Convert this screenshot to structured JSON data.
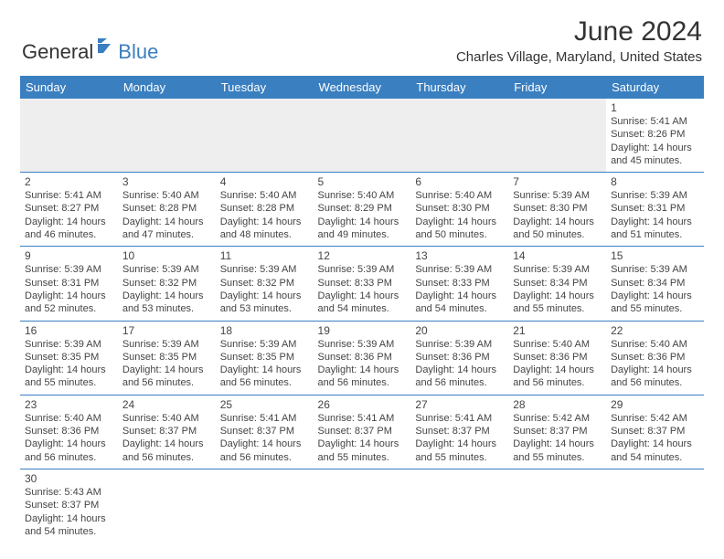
{
  "brand": {
    "part1": "General",
    "part2": "Blue"
  },
  "title": "June 2024",
  "location": "Charles Village, Maryland, United States",
  "colors": {
    "accent": "#3a7fc0",
    "blank_bg": "#eeeeee",
    "text": "#444444",
    "title_text": "#333333"
  },
  "day_headers": [
    "Sunday",
    "Monday",
    "Tuesday",
    "Wednesday",
    "Thursday",
    "Friday",
    "Saturday"
  ],
  "weeks": [
    [
      {
        "blank": true
      },
      {
        "blank": true
      },
      {
        "blank": true
      },
      {
        "blank": true
      },
      {
        "blank": true
      },
      {
        "blank": true
      },
      {
        "day": "1",
        "sunrise": "Sunrise: 5:41 AM",
        "sunset": "Sunset: 8:26 PM",
        "daylight1": "Daylight: 14 hours",
        "daylight2": "and 45 minutes."
      }
    ],
    [
      {
        "day": "2",
        "sunrise": "Sunrise: 5:41 AM",
        "sunset": "Sunset: 8:27 PM",
        "daylight1": "Daylight: 14 hours",
        "daylight2": "and 46 minutes."
      },
      {
        "day": "3",
        "sunrise": "Sunrise: 5:40 AM",
        "sunset": "Sunset: 8:28 PM",
        "daylight1": "Daylight: 14 hours",
        "daylight2": "and 47 minutes."
      },
      {
        "day": "4",
        "sunrise": "Sunrise: 5:40 AM",
        "sunset": "Sunset: 8:28 PM",
        "daylight1": "Daylight: 14 hours",
        "daylight2": "and 48 minutes."
      },
      {
        "day": "5",
        "sunrise": "Sunrise: 5:40 AM",
        "sunset": "Sunset: 8:29 PM",
        "daylight1": "Daylight: 14 hours",
        "daylight2": "and 49 minutes."
      },
      {
        "day": "6",
        "sunrise": "Sunrise: 5:40 AM",
        "sunset": "Sunset: 8:30 PM",
        "daylight1": "Daylight: 14 hours",
        "daylight2": "and 50 minutes."
      },
      {
        "day": "7",
        "sunrise": "Sunrise: 5:39 AM",
        "sunset": "Sunset: 8:30 PM",
        "daylight1": "Daylight: 14 hours",
        "daylight2": "and 50 minutes."
      },
      {
        "day": "8",
        "sunrise": "Sunrise: 5:39 AM",
        "sunset": "Sunset: 8:31 PM",
        "daylight1": "Daylight: 14 hours",
        "daylight2": "and 51 minutes."
      }
    ],
    [
      {
        "day": "9",
        "sunrise": "Sunrise: 5:39 AM",
        "sunset": "Sunset: 8:31 PM",
        "daylight1": "Daylight: 14 hours",
        "daylight2": "and 52 minutes."
      },
      {
        "day": "10",
        "sunrise": "Sunrise: 5:39 AM",
        "sunset": "Sunset: 8:32 PM",
        "daylight1": "Daylight: 14 hours",
        "daylight2": "and 53 minutes."
      },
      {
        "day": "11",
        "sunrise": "Sunrise: 5:39 AM",
        "sunset": "Sunset: 8:32 PM",
        "daylight1": "Daylight: 14 hours",
        "daylight2": "and 53 minutes."
      },
      {
        "day": "12",
        "sunrise": "Sunrise: 5:39 AM",
        "sunset": "Sunset: 8:33 PM",
        "daylight1": "Daylight: 14 hours",
        "daylight2": "and 54 minutes."
      },
      {
        "day": "13",
        "sunrise": "Sunrise: 5:39 AM",
        "sunset": "Sunset: 8:33 PM",
        "daylight1": "Daylight: 14 hours",
        "daylight2": "and 54 minutes."
      },
      {
        "day": "14",
        "sunrise": "Sunrise: 5:39 AM",
        "sunset": "Sunset: 8:34 PM",
        "daylight1": "Daylight: 14 hours",
        "daylight2": "and 55 minutes."
      },
      {
        "day": "15",
        "sunrise": "Sunrise: 5:39 AM",
        "sunset": "Sunset: 8:34 PM",
        "daylight1": "Daylight: 14 hours",
        "daylight2": "and 55 minutes."
      }
    ],
    [
      {
        "day": "16",
        "sunrise": "Sunrise: 5:39 AM",
        "sunset": "Sunset: 8:35 PM",
        "daylight1": "Daylight: 14 hours",
        "daylight2": "and 55 minutes."
      },
      {
        "day": "17",
        "sunrise": "Sunrise: 5:39 AM",
        "sunset": "Sunset: 8:35 PM",
        "daylight1": "Daylight: 14 hours",
        "daylight2": "and 56 minutes."
      },
      {
        "day": "18",
        "sunrise": "Sunrise: 5:39 AM",
        "sunset": "Sunset: 8:35 PM",
        "daylight1": "Daylight: 14 hours",
        "daylight2": "and 56 minutes."
      },
      {
        "day": "19",
        "sunrise": "Sunrise: 5:39 AM",
        "sunset": "Sunset: 8:36 PM",
        "daylight1": "Daylight: 14 hours",
        "daylight2": "and 56 minutes."
      },
      {
        "day": "20",
        "sunrise": "Sunrise: 5:39 AM",
        "sunset": "Sunset: 8:36 PM",
        "daylight1": "Daylight: 14 hours",
        "daylight2": "and 56 minutes."
      },
      {
        "day": "21",
        "sunrise": "Sunrise: 5:40 AM",
        "sunset": "Sunset: 8:36 PM",
        "daylight1": "Daylight: 14 hours",
        "daylight2": "and 56 minutes."
      },
      {
        "day": "22",
        "sunrise": "Sunrise: 5:40 AM",
        "sunset": "Sunset: 8:36 PM",
        "daylight1": "Daylight: 14 hours",
        "daylight2": "and 56 minutes."
      }
    ],
    [
      {
        "day": "23",
        "sunrise": "Sunrise: 5:40 AM",
        "sunset": "Sunset: 8:36 PM",
        "daylight1": "Daylight: 14 hours",
        "daylight2": "and 56 minutes."
      },
      {
        "day": "24",
        "sunrise": "Sunrise: 5:40 AM",
        "sunset": "Sunset: 8:37 PM",
        "daylight1": "Daylight: 14 hours",
        "daylight2": "and 56 minutes."
      },
      {
        "day": "25",
        "sunrise": "Sunrise: 5:41 AM",
        "sunset": "Sunset: 8:37 PM",
        "daylight1": "Daylight: 14 hours",
        "daylight2": "and 56 minutes."
      },
      {
        "day": "26",
        "sunrise": "Sunrise: 5:41 AM",
        "sunset": "Sunset: 8:37 PM",
        "daylight1": "Daylight: 14 hours",
        "daylight2": "and 55 minutes."
      },
      {
        "day": "27",
        "sunrise": "Sunrise: 5:41 AM",
        "sunset": "Sunset: 8:37 PM",
        "daylight1": "Daylight: 14 hours",
        "daylight2": "and 55 minutes."
      },
      {
        "day": "28",
        "sunrise": "Sunrise: 5:42 AM",
        "sunset": "Sunset: 8:37 PM",
        "daylight1": "Daylight: 14 hours",
        "daylight2": "and 55 minutes."
      },
      {
        "day": "29",
        "sunrise": "Sunrise: 5:42 AM",
        "sunset": "Sunset: 8:37 PM",
        "daylight1": "Daylight: 14 hours",
        "daylight2": "and 54 minutes."
      }
    ],
    [
      {
        "day": "30",
        "sunrise": "Sunrise: 5:43 AM",
        "sunset": "Sunset: 8:37 PM",
        "daylight1": "Daylight: 14 hours",
        "daylight2": "and 54 minutes."
      },
      {
        "blank": true
      },
      {
        "blank": true
      },
      {
        "blank": true
      },
      {
        "blank": true
      },
      {
        "blank": true
      },
      {
        "blank": true
      }
    ]
  ]
}
